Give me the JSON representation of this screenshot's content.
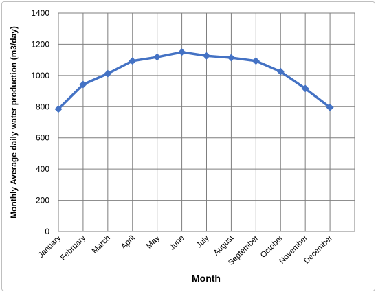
{
  "chart_data": {
    "type": "line",
    "title": "",
    "xlabel": "Month",
    "ylabel": "Monthly Average daily water production (m3/day)",
    "categories": [
      "January",
      "February",
      "March",
      "April",
      "May",
      "June",
      "July",
      "August",
      "September",
      "October",
      "November",
      "December"
    ],
    "series": [
      {
        "values": [
          785,
          942,
          1012,
          1093,
          1118,
          1150,
          1126,
          1114,
          1093,
          1025,
          916,
          795
        ]
      }
    ],
    "ylim": [
      0,
      1400
    ],
    "yticks": [
      0,
      200,
      400,
      600,
      800,
      1000,
      1200,
      1400
    ],
    "grid": true,
    "legend": "none",
    "colors": {
      "series": "#4472c4",
      "grid": "#7f7f7f"
    },
    "marker": "diamond"
  }
}
